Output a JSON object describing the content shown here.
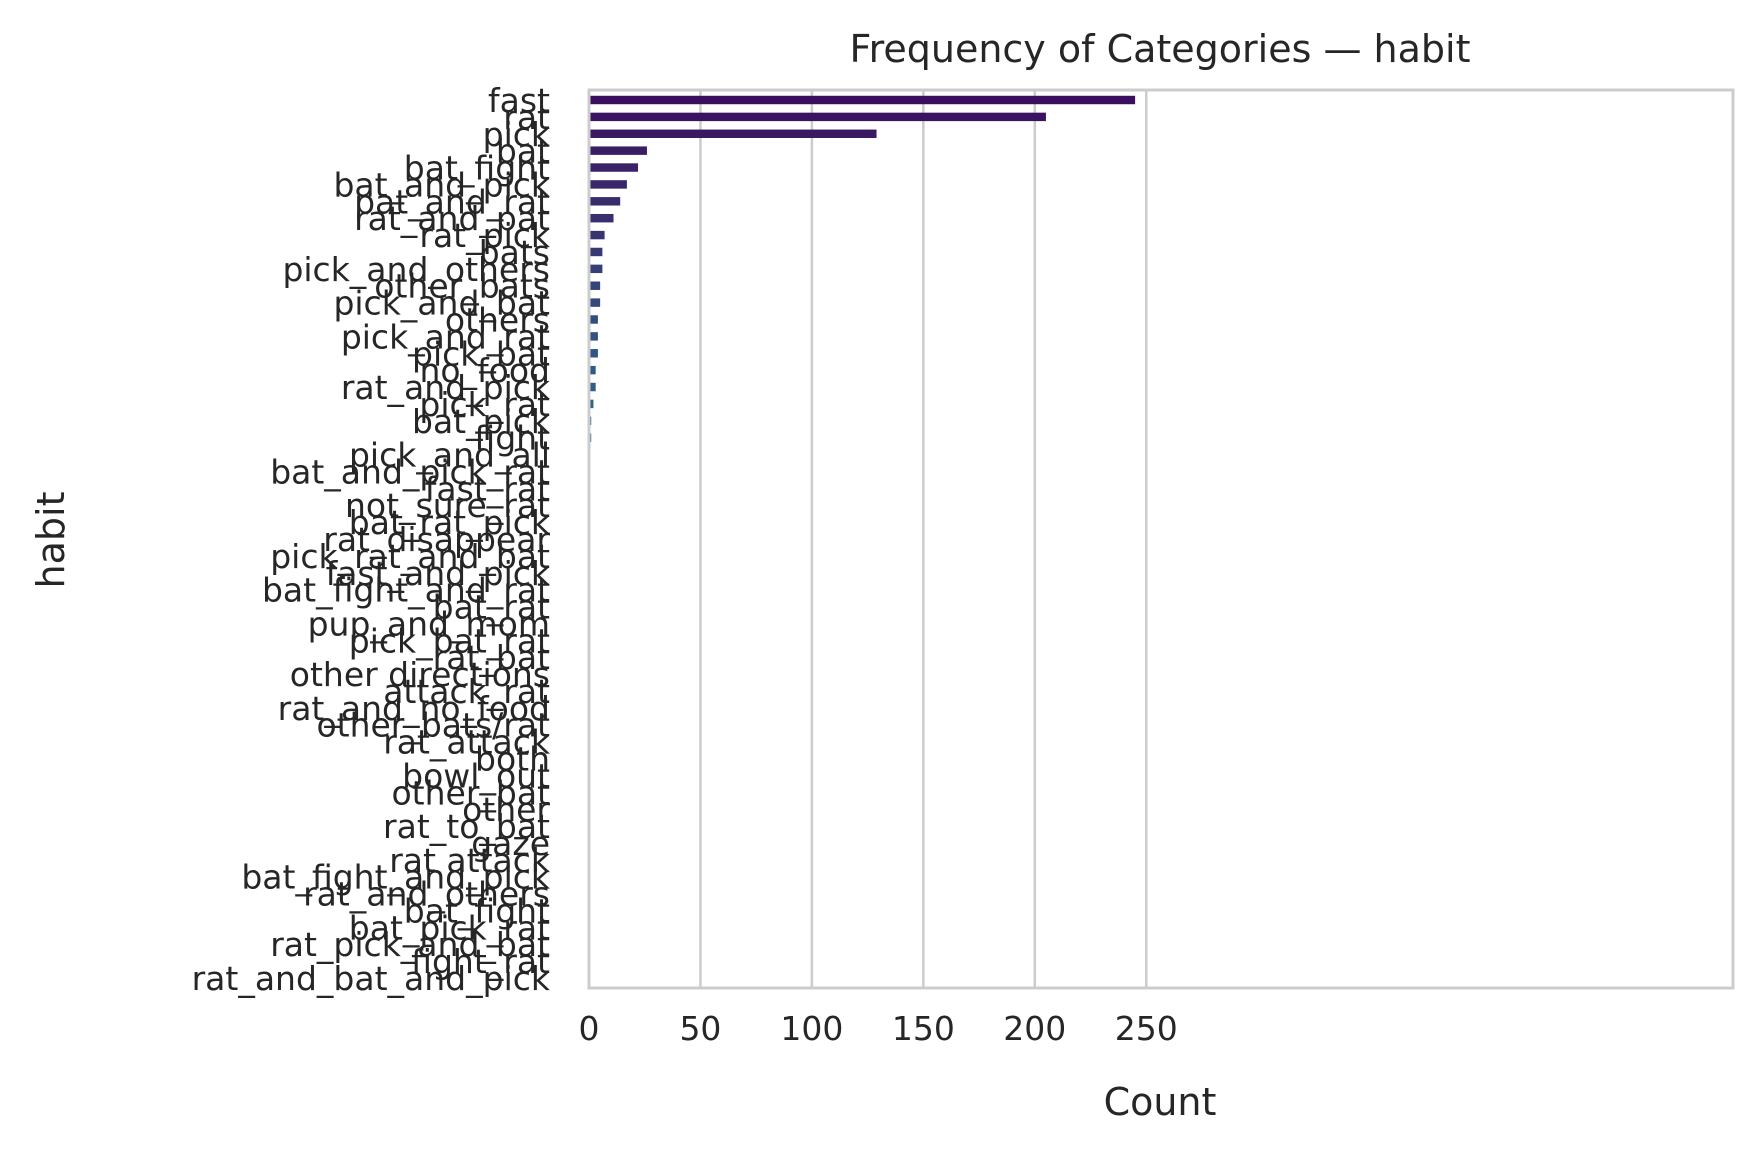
{
  "chart_data": {
    "type": "bar",
    "orientation": "horizontal",
    "title": "Frequency of Categories — habit",
    "xlabel": "Count",
    "ylabel": "habit",
    "xlim": [
      0,
      258
    ],
    "xticks": [
      0,
      50,
      100,
      150,
      200,
      250
    ],
    "grid": "vertical",
    "legend": "none",
    "palette_start": "#3b0f5e",
    "palette_end": "#2f6e8e",
    "categories": [
      "fast",
      "rat",
      "pick",
      "bat",
      "bat_fight",
      "bat_and_pick",
      "pat_and_rat",
      "rat_and_pat",
      "rat_pick",
      "bats",
      "pick_and_others",
      "other_bats",
      "pick_and_bat",
      "others",
      "pick_and_rat",
      "pick_bat",
      "no_food",
      "rat_and_pick",
      "pick_rat",
      "bat_pick",
      "fight",
      "pick_and_all",
      "bat_and_pick_rat",
      "fast_rat",
      "not_sure_rat",
      "bat_rat_pick",
      "rat_disappear",
      "pick_rat_and_bat",
      "fast_and_pick",
      "bat_fight_and_rat",
      "bat_rat",
      "pup_and_mom",
      "pick_bat_rat",
      "rat_bat",
      "other directions",
      "attack_rat",
      "rat_and_no_food",
      "other_bats/rat",
      "rat_attack",
      "both",
      "bowl_out",
      "other_bat",
      "other",
      "rat_to_bat",
      "gaze",
      "rat attack",
      "bat_fight_and_pick",
      "rat_and_others",
      "bat_fight",
      "bat_pick_rat",
      "rat_pick_and_bat",
      "fight_rat",
      "rat_and_bat_and_pick"
    ],
    "values": [
      245,
      205,
      129,
      26,
      22,
      17,
      14,
      11,
      7,
      6,
      6,
      5,
      5,
      4,
      4,
      4,
      3,
      3,
      2,
      1,
      1,
      0,
      0,
      0,
      0,
      0,
      0,
      0,
      0,
      0,
      0,
      0,
      0,
      0,
      0,
      0,
      0,
      0,
      0,
      0,
      0,
      0,
      0,
      0,
      0,
      0,
      0,
      0,
      0,
      0,
      0,
      0,
      0
    ]
  }
}
